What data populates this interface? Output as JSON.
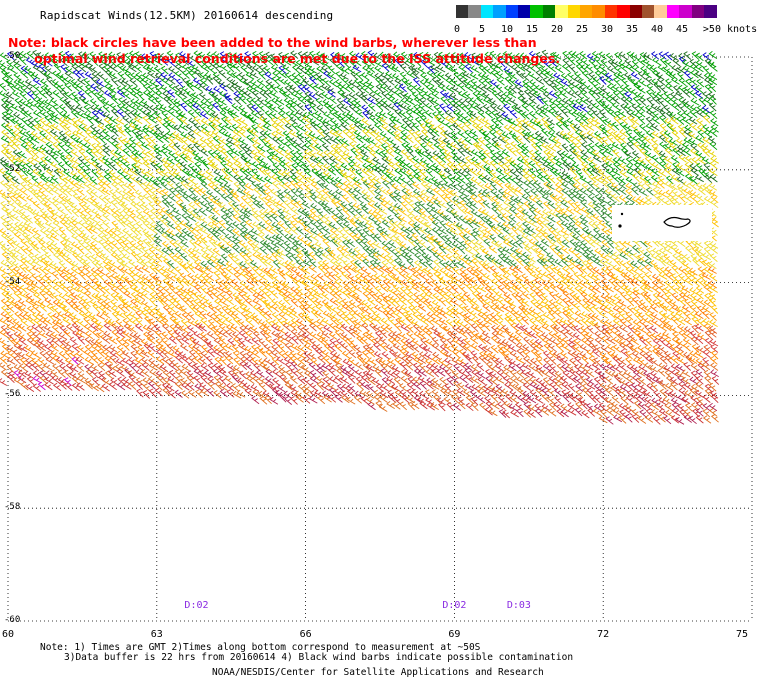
{
  "title": "Rapidscat Winds(12.5KM) 20160614 descending",
  "note_line1": "Note: black circles have been added to the wind barbs, wherever less than",
  "note_line2": "      optimal wind retrieval conditions are met due to the ISS attitude changes.",
  "legend": {
    "labels": [
      "0",
      "5",
      "10",
      "15",
      "20",
      "25",
      "30",
      "35",
      "40",
      "45",
      ">50 knots"
    ],
    "colors": [
      "#333333",
      "#888888",
      "#00e5ff",
      "#00a0ff",
      "#0040ff",
      "#0000aa",
      "#00c000",
      "#008000",
      "#ffff66",
      "#ffd700",
      "#ffa500",
      "#ff8c00",
      "#ff3300",
      "#ff0000",
      "#8b0000",
      "#a0522d",
      "#ffcc99",
      "#ff00ff",
      "#cc00cc",
      "#800080",
      "#4b0082"
    ]
  },
  "lat_labels": [
    "-50",
    "-52",
    "-54",
    "-56",
    "-58",
    "-60"
  ],
  "lon_labels": [
    "60",
    "63",
    "66",
    "69",
    "72",
    "75"
  ],
  "time_labels": [
    {
      "text": "D:02",
      "lon": 63.8
    },
    {
      "text": "D:02",
      "lon": 69.0
    },
    {
      "text": "D:03",
      "lon": 70.3
    }
  ],
  "footnote_line1": "Note: 1) Times are GMT 2)Times along bottom correspond to measurement at ~50S",
  "footnote_line2": "3)Data buffer is 22 hrs from 20160614 4) Black wind barbs indicate possible contamination",
  "credit": "NOAA/NESDIS/Center for Satellite Applications and Research",
  "map": {
    "lon_min": 60,
    "lon_max": 75,
    "lat_min": -60,
    "lat_max": -50
  }
}
